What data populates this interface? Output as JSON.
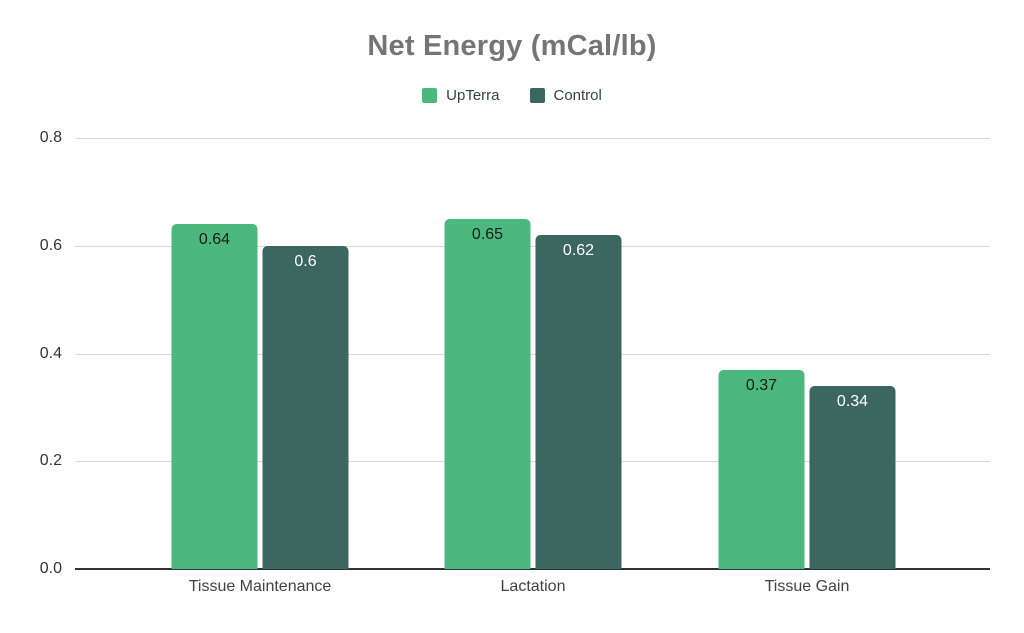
{
  "title": "Net Energy (mCal/lb)",
  "chart_data": {
    "type": "bar",
    "title": "Net Energy (mCal/lb)",
    "categories": [
      "Tissue Maintenance",
      "Lactation",
      "Tissue Gain"
    ],
    "series": [
      {
        "name": "UpTerra",
        "values": [
          0.64,
          0.65,
          0.37
        ],
        "display_labels": [
          "0.64",
          "0.65",
          "0.37"
        ],
        "color": "#4db87e",
        "label_color": "#1b1b1b"
      },
      {
        "name": "Control",
        "values": [
          0.6,
          0.62,
          0.34
        ],
        "display_labels": [
          "0.6",
          "0.62",
          "0.34"
        ],
        "color": "#3c6660",
        "label_color": "#ffffff"
      }
    ],
    "xlabel": "",
    "ylabel": "",
    "ylim": [
      0,
      0.8
    ],
    "yticks": [
      "0.0",
      "0.2",
      "0.4",
      "0.6",
      "0.8"
    ],
    "grid": true,
    "legend_position": "top",
    "data_labels_position": "inside-top"
  },
  "colors": {
    "series_upterra": "#4db87e",
    "series_control": "#3c6660",
    "title_text": "#757575",
    "legend_text": "#3c4043",
    "axis_text": "#333333",
    "gridline": "#d9d9d9",
    "baseline": "#333333",
    "background": "#ffffff"
  }
}
